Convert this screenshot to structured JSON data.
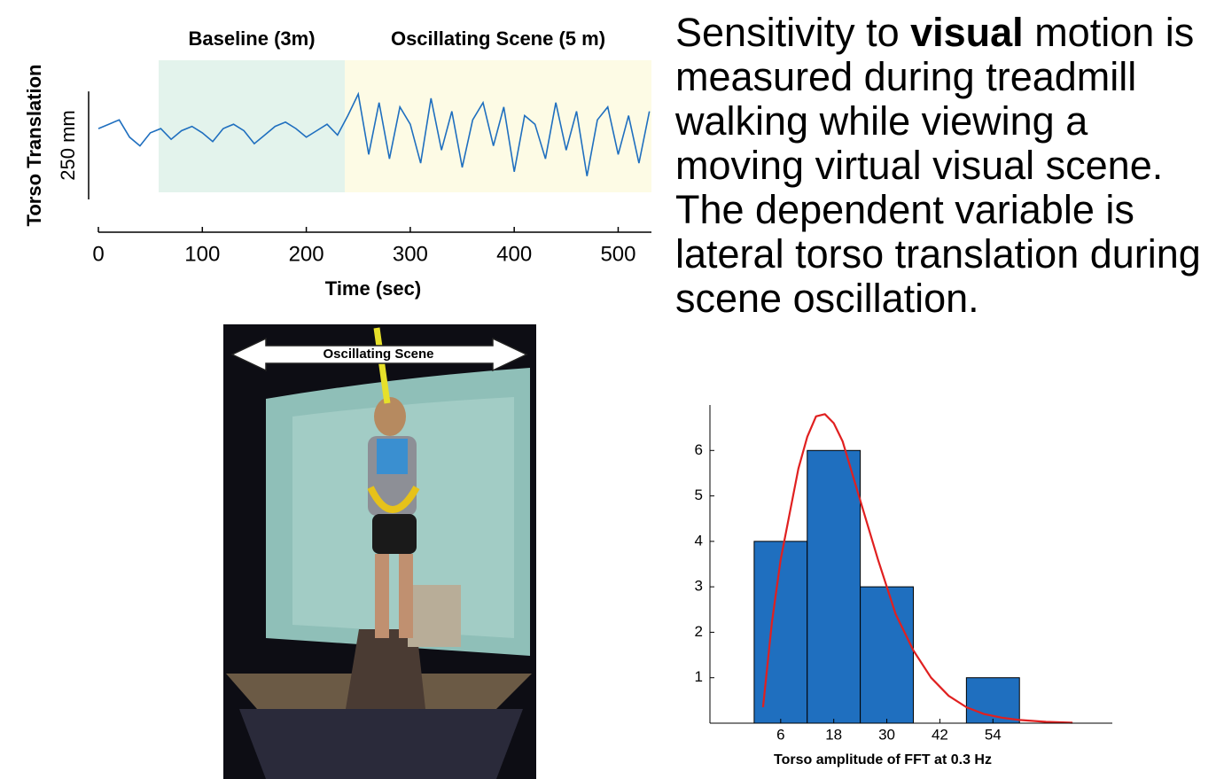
{
  "chart_data": [
    {
      "type": "line",
      "y_label": "Torso Translation",
      "x_label": "Time (sec)",
      "scale_bar": {
        "value": 250,
        "label": "250 mm"
      },
      "regions": [
        {
          "label": "Baseline (3m)",
          "start": 58,
          "end": 237,
          "color": "#e3f3ec"
        },
        {
          "label": "Oscillating Scene (5 m)",
          "start": 237,
          "end": 532,
          "color": "#fdfbe5"
        }
      ],
      "xlim": [
        0,
        532
      ],
      "xticks": [
        0,
        100,
        200,
        300,
        400,
        500
      ],
      "ylim": [
        -154,
        164
      ],
      "x": [
        0,
        10,
        20,
        30,
        40,
        50,
        60,
        70,
        80,
        90,
        100,
        110,
        120,
        130,
        140,
        150,
        160,
        170,
        180,
        190,
        200,
        210,
        220,
        230,
        240,
        250,
        260,
        270,
        280,
        290,
        300,
        310,
        320,
        330,
        340,
        350,
        360,
        370,
        380,
        390,
        400,
        410,
        420,
        430,
        440,
        450,
        460,
        470,
        480,
        490,
        500,
        510,
        520,
        530
      ],
      "series": [
        {
          "color": "#1f6fbf",
          "values": [
            10,
            20,
            30,
            -10,
            -30,
            0,
            10,
            -15,
            5,
            15,
            0,
            -20,
            10,
            20,
            5,
            -25,
            -5,
            15,
            25,
            10,
            -10,
            5,
            20,
            -5,
            40,
            90,
            -50,
            70,
            -60,
            60,
            20,
            -70,
            80,
            -40,
            50,
            -80,
            30,
            70,
            -30,
            60,
            -90,
            40,
            20,
            -60,
            70,
            -40,
            50,
            -100,
            30,
            60,
            -50,
            40,
            -70,
            50
          ]
        }
      ]
    },
    {
      "type": "histogram",
      "x_label": "Torso amplitude of FFT at 0.3 Hz",
      "bins": [
        0,
        12,
        24,
        36,
        48,
        60
      ],
      "values": [
        4,
        6,
        3,
        0,
        1
      ],
      "color": "#1f6fbf",
      "xlim": [
        -10,
        81
      ],
      "xticks": [
        6,
        18,
        30,
        42,
        54
      ],
      "ylim": [
        0,
        7
      ],
      "yticks": [
        1,
        2,
        3,
        4,
        5,
        6
      ],
      "fit": {
        "color": "#e02020",
        "x": [
          2,
          4,
          6,
          8,
          10,
          12,
          14,
          16,
          18,
          20,
          24,
          28,
          32,
          36,
          40,
          44,
          48,
          52,
          56,
          60,
          66,
          72
        ],
        "values": [
          0.35,
          2.2,
          3.6,
          4.6,
          5.6,
          6.3,
          6.75,
          6.8,
          6.6,
          6.2,
          4.9,
          3.6,
          2.4,
          1.6,
          1.0,
          0.6,
          0.35,
          0.2,
          0.12,
          0.07,
          0.03,
          0.01
        ]
      }
    }
  ],
  "photo": {
    "label": "Oscillating Scene"
  },
  "description": {
    "parts": [
      "Sensitivity to ",
      "visual",
      " motion is measured during treadmill walking while viewing a moving virtual visual scene. The dependent variable is lateral torso translation during scene oscillation."
    ]
  }
}
